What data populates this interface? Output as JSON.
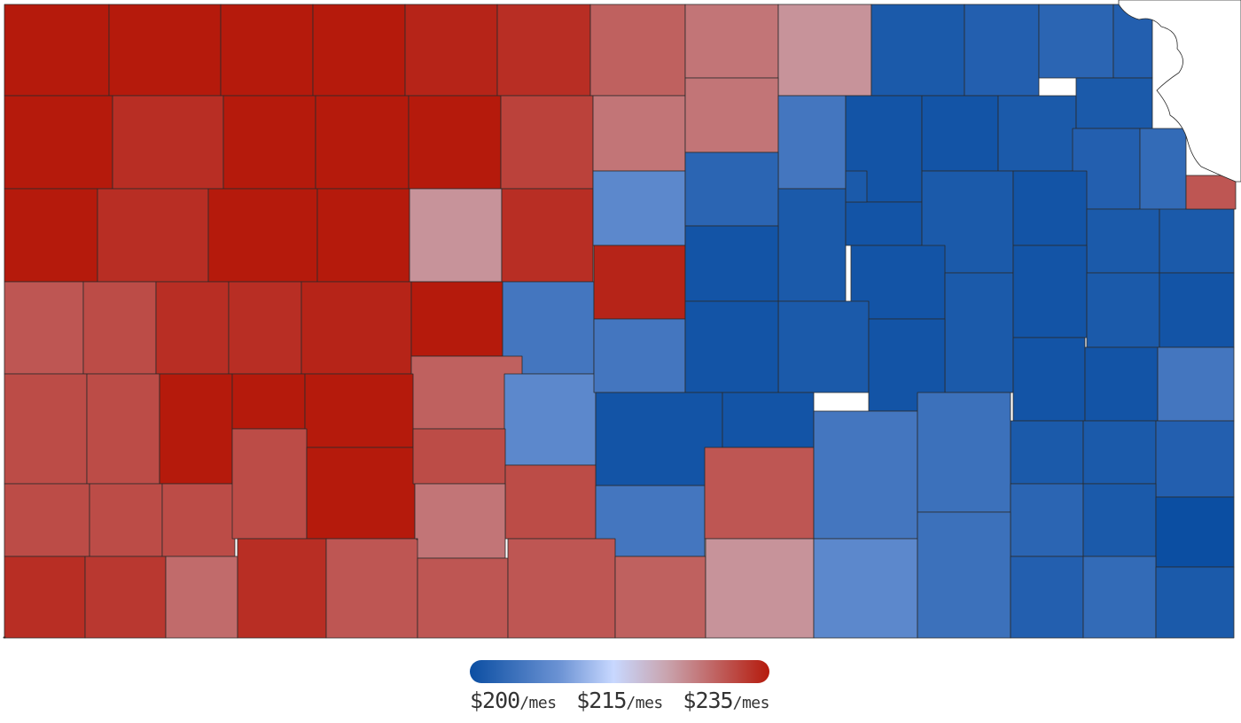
{
  "map": {
    "counties": [
      {
        "id": "r0c0",
        "value": 240
      },
      {
        "id": "r0c1",
        "value": 240
      },
      {
        "id": "r0c2",
        "value": 240
      },
      {
        "id": "r0c3",
        "value": 240
      },
      {
        "id": "r0c4",
        "value": 239
      },
      {
        "id": "r0c5",
        "value": 238
      },
      {
        "id": "r0c6",
        "value": 233
      },
      {
        "id": "r0c7",
        "value": 231
      },
      {
        "id": "r0c8",
        "value": 228
      },
      {
        "id": "r0c9",
        "value": 202
      },
      {
        "id": "r0c10",
        "value": 203
      },
      {
        "id": "r0c11",
        "value": 204
      },
      {
        "id": "r0c12",
        "value": 203
      },
      {
        "id": "r1c0",
        "value": 240
      },
      {
        "id": "r1c1",
        "value": 238
      },
      {
        "id": "r1c2",
        "value": 240
      },
      {
        "id": "r1c3",
        "value": 240
      },
      {
        "id": "r1c4",
        "value": 240
      },
      {
        "id": "r1c5",
        "value": 236
      },
      {
        "id": "r1c6",
        "value": 231
      },
      {
        "id": "r1c7",
        "value": 231
      },
      {
        "id": "r1c8",
        "value": 207
      },
      {
        "id": "r1c9",
        "value": 201
      },
      {
        "id": "r1c10",
        "value": 201
      },
      {
        "id": "r1c11",
        "value": 202
      },
      {
        "id": "r1c12",
        "value": 202
      },
      {
        "id": "r1c13",
        "value": 203
      },
      {
        "id": "r1c14",
        "value": 205
      },
      {
        "id": "r2c0",
        "value": 240
      },
      {
        "id": "r2c1",
        "value": 238
      },
      {
        "id": "r2c2",
        "value": 240
      },
      {
        "id": "r2c3",
        "value": 240
      },
      {
        "id": "r2c4",
        "value": 228
      },
      {
        "id": "r2c5",
        "value": 238
      },
      {
        "id": "r2c6",
        "value": 210
      },
      {
        "id": "r2c7",
        "value": 204
      },
      {
        "id": "r2c8",
        "value": 202
      },
      {
        "id": "r2c9",
        "value": 201
      },
      {
        "id": "r2c10",
        "value": 202
      },
      {
        "id": "r2c11",
        "value": 201
      },
      {
        "id": "r2c12",
        "value": 202
      },
      {
        "id": "r2c13",
        "value": 202
      },
      {
        "id": "r2c14",
        "value": 202
      },
      {
        "id": "r2c15",
        "value": 234
      },
      {
        "id": "r3c0",
        "value": 234
      },
      {
        "id": "r3c1",
        "value": 235
      },
      {
        "id": "r3c2",
        "value": 238
      },
      {
        "id": "r3c3",
        "value": 238
      },
      {
        "id": "r3c4",
        "value": 239
      },
      {
        "id": "r3c5",
        "value": 240
      },
      {
        "id": "r3c6",
        "value": 207
      },
      {
        "id": "r3c7",
        "value": 239
      },
      {
        "id": "r3c8",
        "value": 201
      },
      {
        "id": "r3c9",
        "value": 201
      },
      {
        "id": "r3c10",
        "value": 202
      },
      {
        "id": "r3c11",
        "value": 201
      },
      {
        "id": "r3c12",
        "value": 202
      },
      {
        "id": "r3c13",
        "value": 201
      },
      {
        "id": "r3c14",
        "value": 202
      },
      {
        "id": "r4c0",
        "value": 235
      },
      {
        "id": "r4c1",
        "value": 235
      },
      {
        "id": "r4c2",
        "value": 240
      },
      {
        "id": "r4c3",
        "value": 240
      },
      {
        "id": "r4c4",
        "value": 233
      },
      {
        "id": "r4c5",
        "value": 210
      },
      {
        "id": "r4c6",
        "value": 207
      },
      {
        "id": "r4c7",
        "value": 201
      },
      {
        "id": "r4c8",
        "value": 201
      },
      {
        "id": "r4c9",
        "value": 201
      },
      {
        "id": "r4c10",
        "value": 201
      },
      {
        "id": "r4c11",
        "value": 202
      },
      {
        "id": "r4c12",
        "value": 202
      },
      {
        "id": "r4c13",
        "value": 207
      },
      {
        "id": "r5c0",
        "value": 235
      },
      {
        "id": "r5c1",
        "value": 235
      },
      {
        "id": "r5c2",
        "value": 235
      },
      {
        "id": "r5c3",
        "value": 240
      },
      {
        "id": "r5c4",
        "value": 235
      },
      {
        "id": "r5c5",
        "value": 240
      },
      {
        "id": "r5c6",
        "value": 201
      },
      {
        "id": "r5c7",
        "value": 201
      },
      {
        "id": "r5c8",
        "value": 203
      },
      {
        "id": "r5c9",
        "value": 202
      },
      {
        "id": "r6c0",
        "value": 238
      },
      {
        "id": "r6c1",
        "value": 237
      },
      {
        "id": "r6c2",
        "value": 235
      },
      {
        "id": "r6c3",
        "value": 235
      },
      {
        "id": "r6c4",
        "value": 240
      },
      {
        "id": "r6c5",
        "value": 231
      },
      {
        "id": "r6c6",
        "value": 232
      },
      {
        "id": "r6c7",
        "value": 207
      },
      {
        "id": "r6c8",
        "value": 234
      },
      {
        "id": "r6c9",
        "value": 207
      },
      {
        "id": "r6c10",
        "value": 206
      },
      {
        "id": "r6c11",
        "value": 204
      },
      {
        "id": "r6c12",
        "value": 202
      },
      {
        "id": "r6c13",
        "value": 200
      },
      {
        "id": "r7c0",
        "value": 238
      },
      {
        "id": "r7c1",
        "value": 234
      },
      {
        "id": "r7c2",
        "value": 238
      },
      {
        "id": "r7c3",
        "value": 234
      },
      {
        "id": "r7c4",
        "value": 234
      },
      {
        "id": "r7c5",
        "value": 233
      },
      {
        "id": "r7c6",
        "value": 235
      },
      {
        "id": "r7c7",
        "value": 236
      },
      {
        "id": "r7c8",
        "value": 228
      },
      {
        "id": "r7c9",
        "value": 210
      },
      {
        "id": "r7c10",
        "value": 206
      },
      {
        "id": "r7c11",
        "value": 203
      },
      {
        "id": "r7c12",
        "value": 205
      },
      {
        "id": "r7c13",
        "value": 202
      }
    ]
  },
  "legend": {
    "min": 200,
    "max": 240,
    "items": [
      {
        "value": "$200",
        "unit": "/mes"
      },
      {
        "value": "$215",
        "unit": "/mes"
      },
      {
        "value": "$235",
        "unit": "/mes"
      }
    ]
  }
}
